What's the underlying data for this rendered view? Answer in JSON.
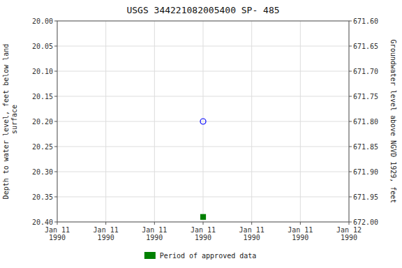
{
  "chart_data": {
    "type": "scatter",
    "title": "USGS 344221082005400 SP- 485",
    "y_label": "Depth to water level, feet below land\n surface",
    "y2_label": "Groundwater level above NGVD 1929, feet",
    "categories": [
      "Jan 11\n1990",
      "Jan 11\n1990",
      "Jan 11\n1990",
      "Jan 11\n1990",
      "Jan 11\n1990",
      "Jan 11\n1990",
      "Jan 12\n1990"
    ],
    "series": [
      {
        "color": "blue",
        "marker": "open-circle",
        "values": [
          null,
          null,
          null,
          20.2,
          null,
          null,
          null
        ]
      },
      {
        "name": "Period of approved data",
        "color": "#008000",
        "marker": "square",
        "values": [
          null,
          null,
          null,
          20.39,
          null,
          null,
          null
        ]
      }
    ],
    "ylim": [
      20.4,
      20.0
    ],
    "yticks": [
      {
        "value": 20.0,
        "label": "20.00"
      },
      20.05,
      {
        "value": 20.1,
        "label": "20.10"
      },
      20.15,
      {
        "value": 20.2,
        "label": "20.20"
      },
      20.25,
      {
        "value": 20.3,
        "label": "20.30"
      },
      20.35,
      {
        "value": 20.4,
        "label": "20.40"
      }
    ],
    "y2lim": [
      672.0,
      671.6
    ],
    "y2ticks": [
      {
        "value": 671.6,
        "label": "671.60"
      },
      671.65,
      {
        "value": 671.7,
        "label": "671.70"
      },
      671.75,
      {
        "value": 671.8,
        "label": "671.80"
      },
      671.85,
      {
        "value": 671.9,
        "label": "671.90"
      },
      671.95,
      {
        "value": 672.0,
        "label": "672.00"
      }
    ],
    "grid": true,
    "legend": "bottom"
  }
}
